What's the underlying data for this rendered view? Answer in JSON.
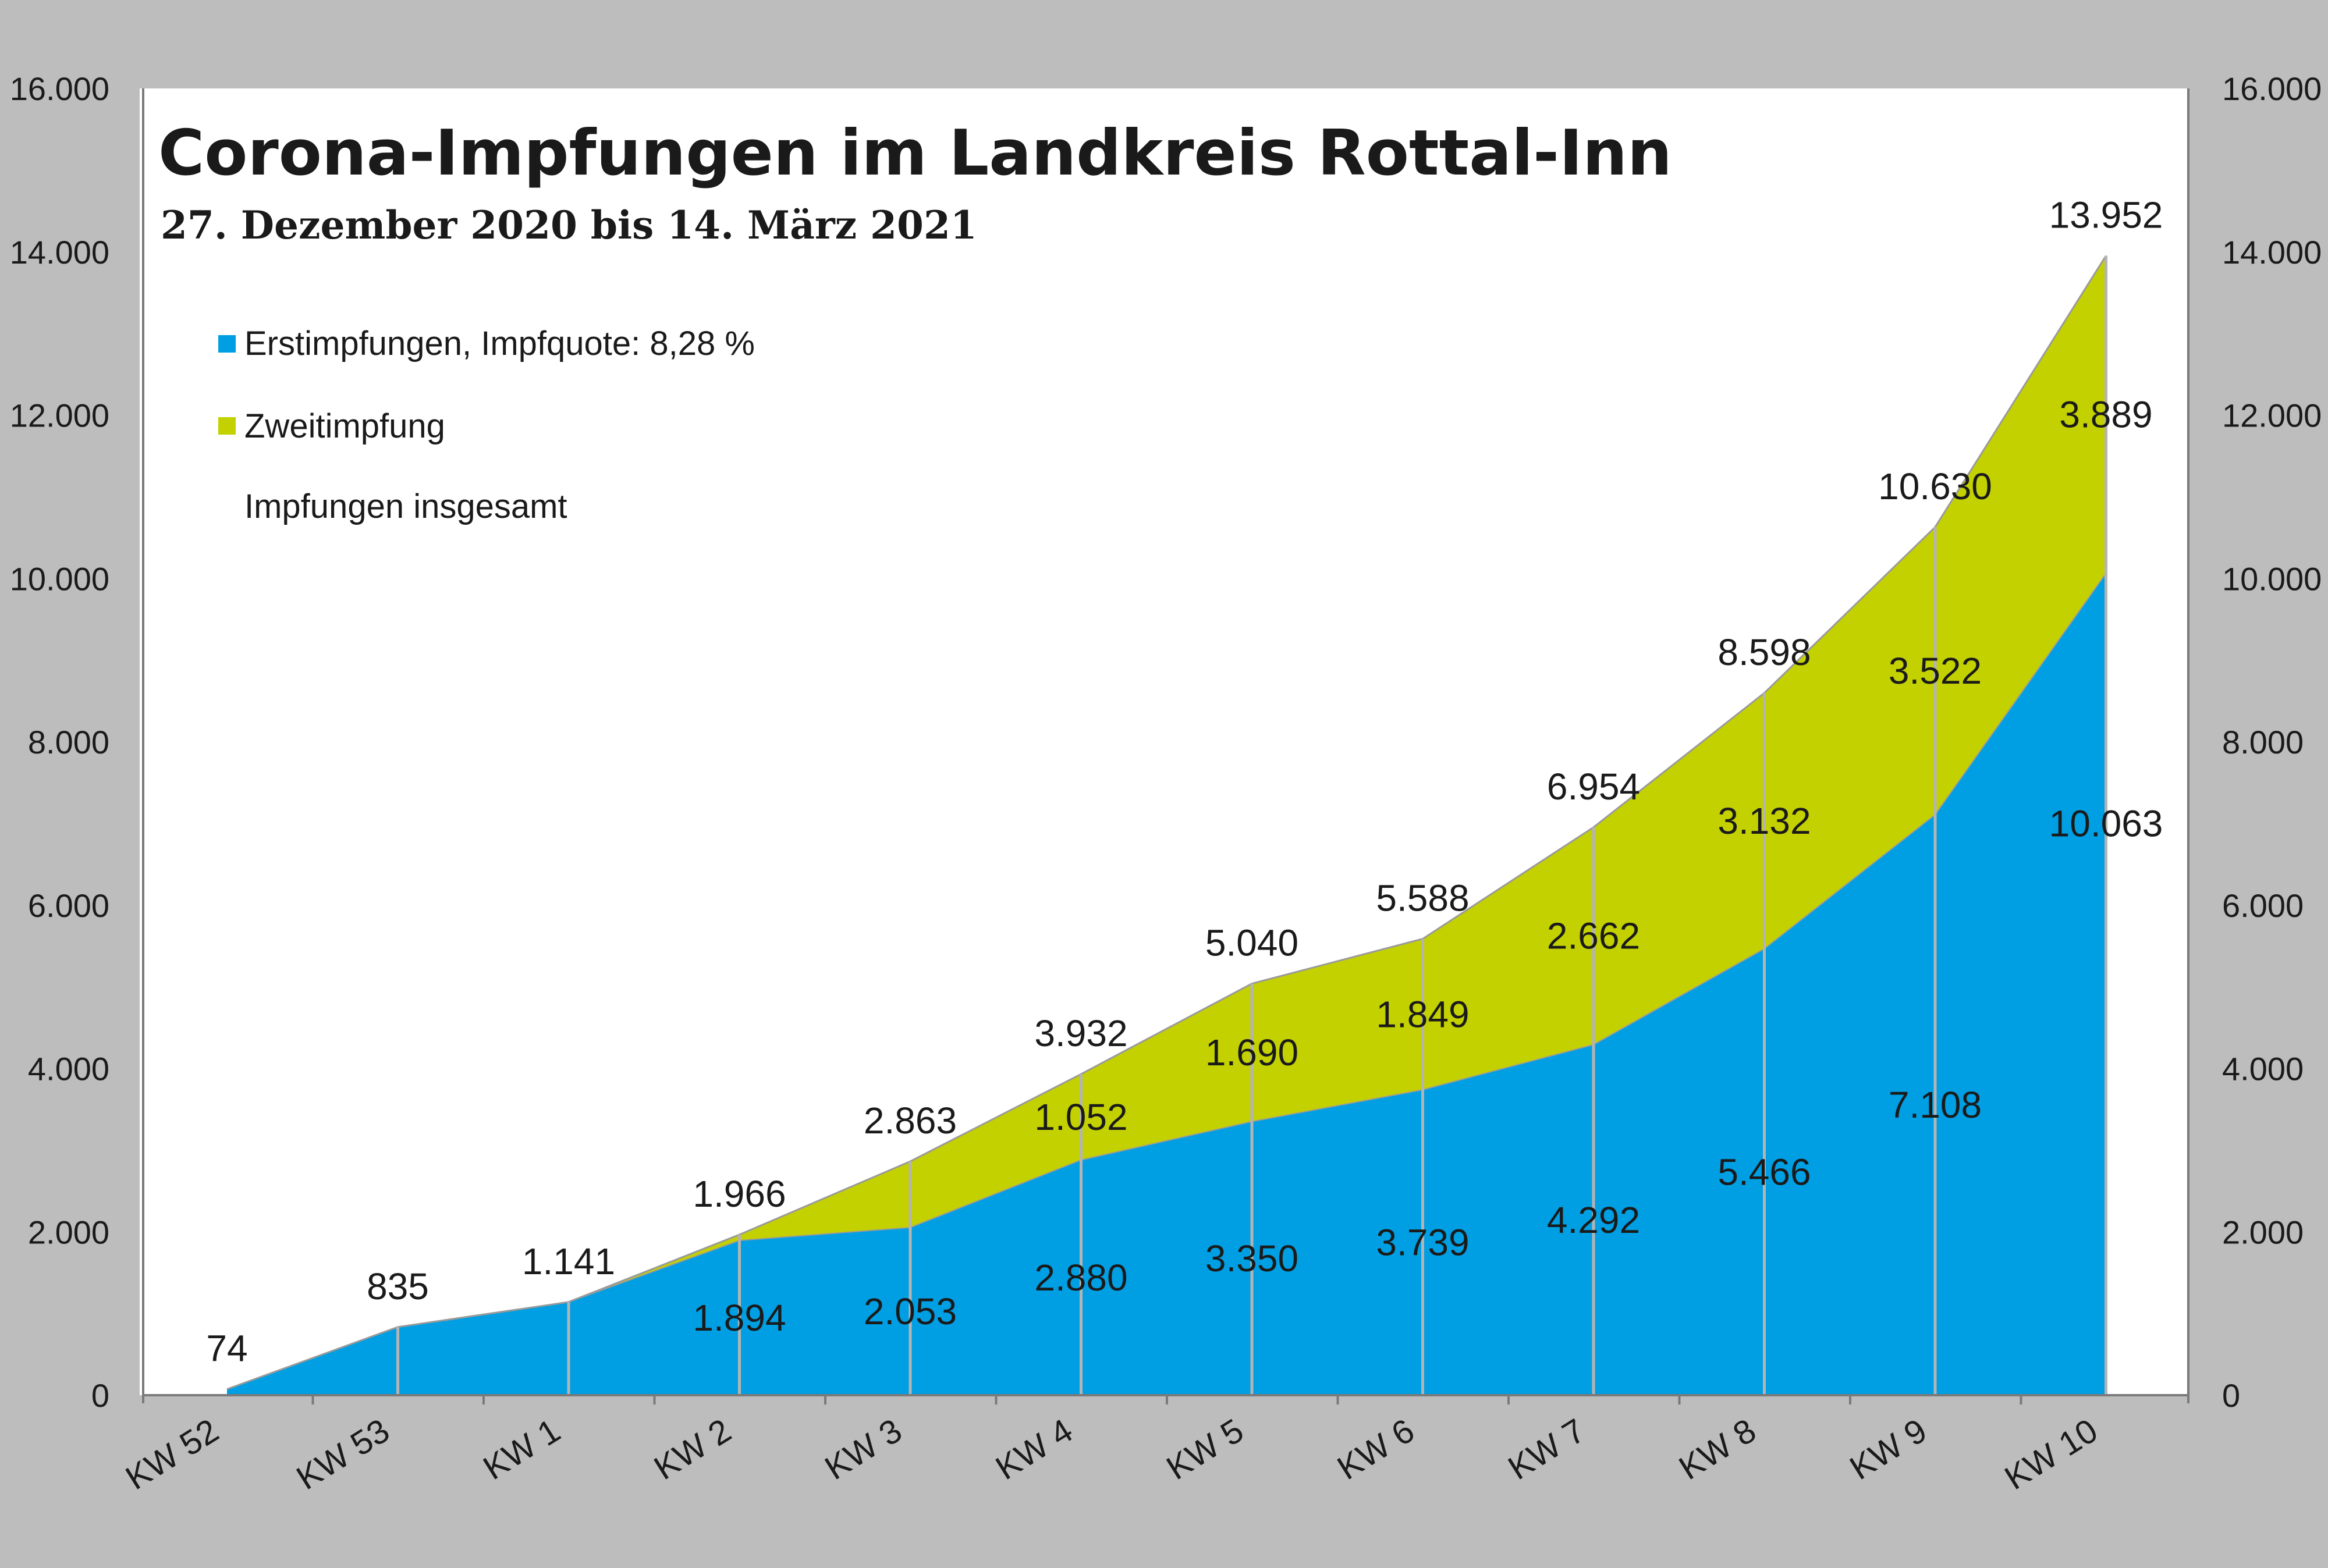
{
  "chart_data": {
    "type": "area",
    "title": "Corona-Impfungen im Landkreis Rottal-Inn",
    "subtitle": "27. Dezember 2020 bis 14. März 2021",
    "categories": [
      "KW 52",
      "KW 53",
      "KW 1",
      "KW 2",
      "KW 3",
      "KW 4",
      "KW 5",
      "KW 6",
      "KW 7",
      "KW 8",
      "KW 9",
      "KW 10"
    ],
    "series": [
      {
        "name": "Erstimpfungen, Impfquote: 8,28 %",
        "color": "#009fe3",
        "values": [
          74,
          835,
          1141,
          1894,
          2053,
          2880,
          3350,
          3739,
          4292,
          5466,
          7108,
          10063
        ],
        "labels": [
          "",
          "",
          "",
          "1.894",
          "2.053",
          "2.880",
          "3.350",
          "3.739",
          "4.292",
          "5.466",
          "7.108",
          "10.063"
        ]
      },
      {
        "name": "Zweitimpfung",
        "color": "#c3d100",
        "values": [
          0,
          0,
          0,
          72,
          810,
          1052,
          1690,
          1849,
          2662,
          3132,
          3522,
          3889
        ],
        "labels": [
          "",
          "",
          "",
          "",
          "",
          "1.052",
          "1.690",
          "1.849",
          "2.662",
          "3.132",
          "3.522",
          "3.889"
        ]
      }
    ],
    "totals": {
      "name": "Impfungen insgesamt",
      "values": [
        74,
        835,
        1141,
        1966,
        2863,
        3932,
        5040,
        5588,
        6954,
        8598,
        10630,
        13952
      ],
      "labels": [
        "74",
        "835",
        "1.141",
        "1.966",
        "2.863",
        "3.932",
        "5.040",
        "5.588",
        "6.954",
        "8.598",
        "10.630",
        "13.952"
      ]
    },
    "ylim": [
      0,
      16000
    ],
    "yticks": [
      0,
      2000,
      4000,
      6000,
      8000,
      10000,
      12000,
      14000,
      16000
    ],
    "ytick_labels": [
      "0",
      "2.000",
      "4.000",
      "6.000",
      "8.000",
      "10.000",
      "12.000",
      "14.000",
      "16.000"
    ],
    "xlabel": "",
    "ylabel": "",
    "legend_position": "top-left",
    "grid": false,
    "axes": "left and right"
  }
}
